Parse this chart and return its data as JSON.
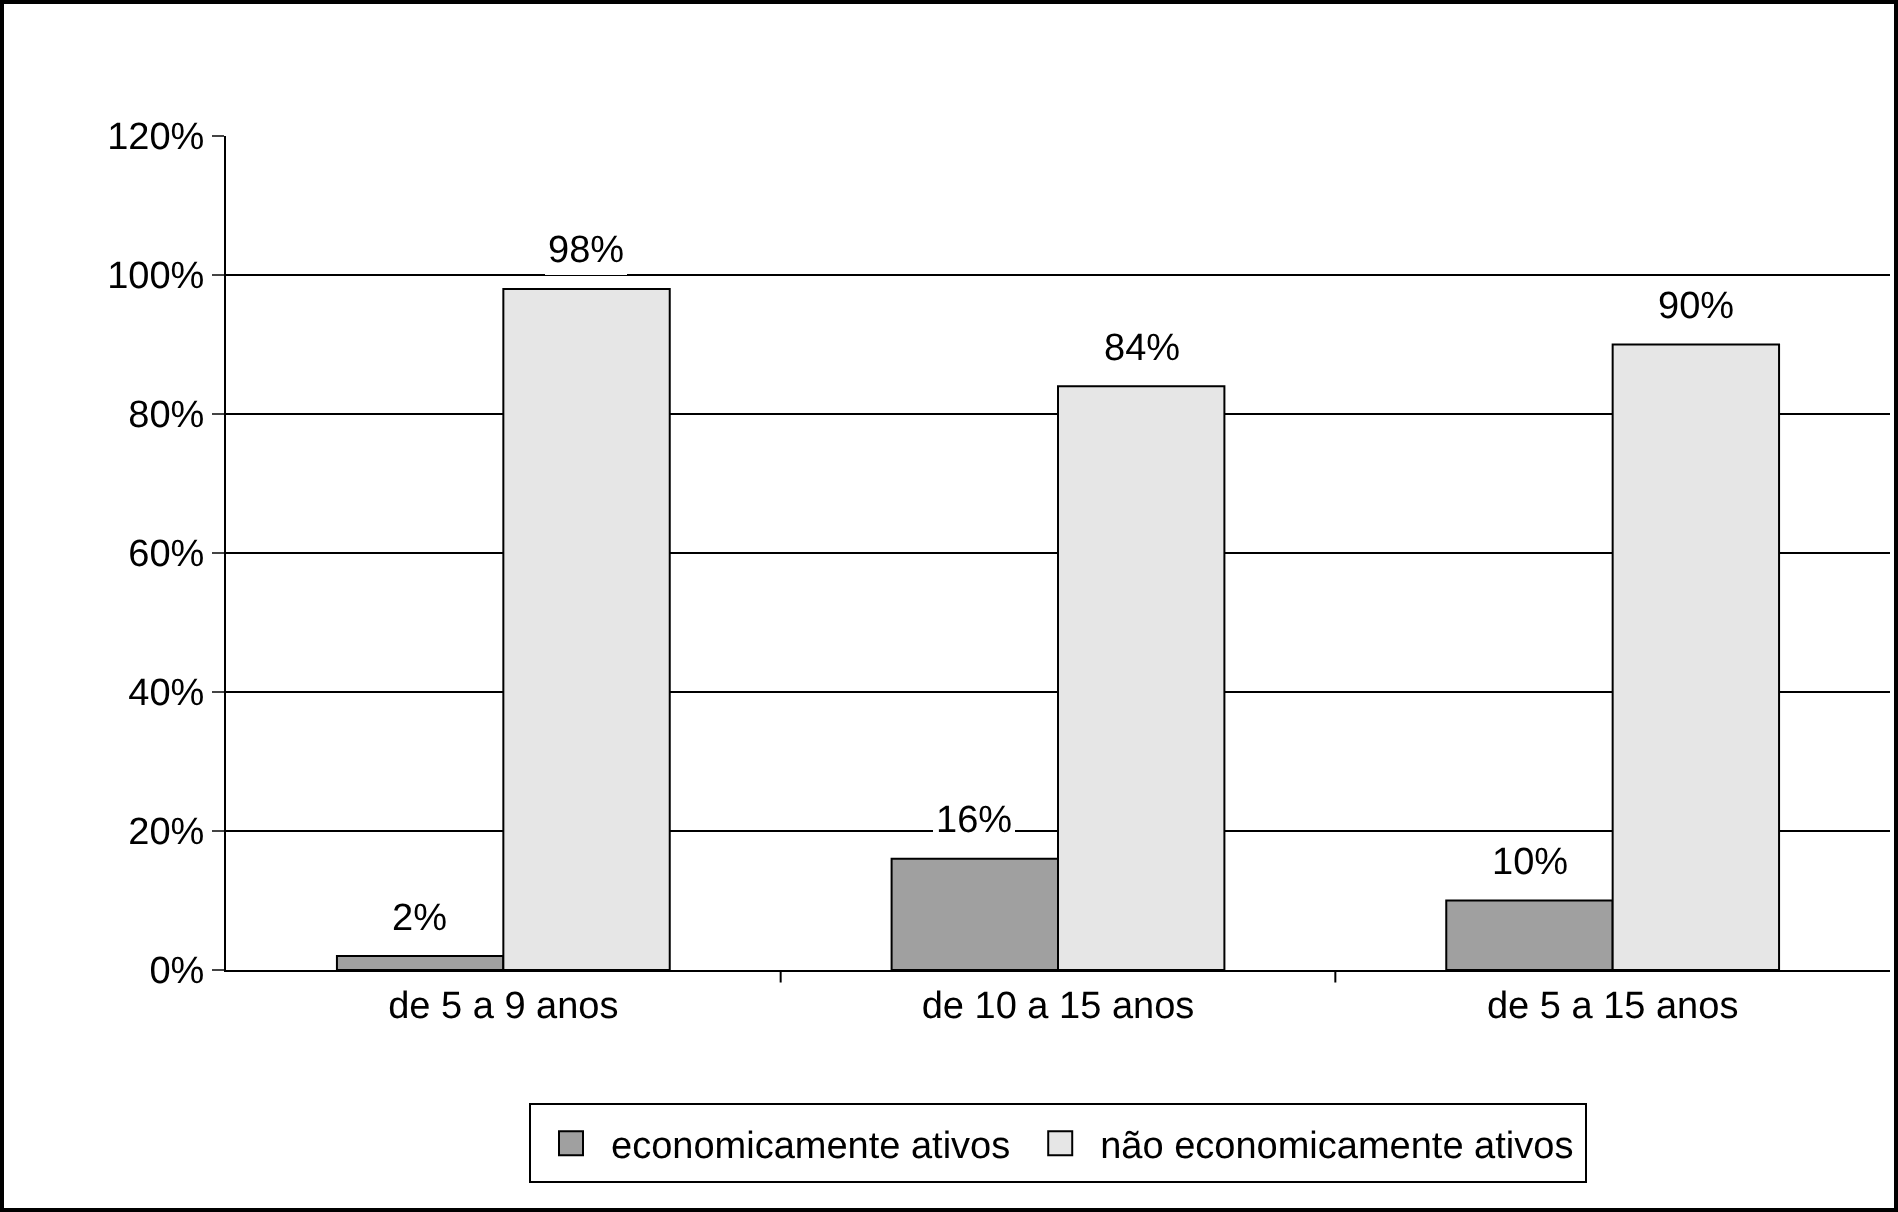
{
  "chart_data": {
    "type": "bar",
    "categories": [
      "de 5 a 9 anos",
      "de 10 a 15 anos",
      "de 5 a 15 anos"
    ],
    "series": [
      {
        "name": "economicamente ativos",
        "color": "#a0a0a0",
        "values": [
          2,
          16,
          10
        ],
        "value_labels": [
          "2%",
          "16%",
          "10%"
        ]
      },
      {
        "name": "não economicamente ativos",
        "color": "#e6e6e6",
        "values": [
          98,
          84,
          90
        ],
        "value_labels": [
          "98%",
          "84%",
          "90%"
        ]
      }
    ],
    "ylim": [
      0,
      120
    ],
    "yticks": [
      {
        "value": 0,
        "label": "0%"
      },
      {
        "value": 20,
        "label": "20%"
      },
      {
        "value": 40,
        "label": "40%"
      },
      {
        "value": 60,
        "label": "60%"
      },
      {
        "value": 80,
        "label": "80%"
      },
      {
        "value": 100,
        "label": "100%"
      },
      {
        "value": 120,
        "label": "120%"
      }
    ],
    "grid": "y",
    "legend": "bottom"
  }
}
